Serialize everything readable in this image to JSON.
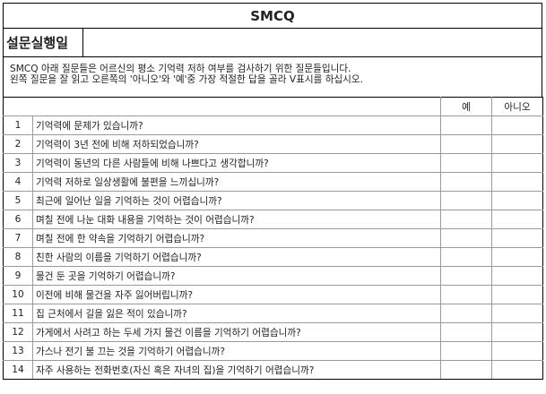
{
  "title": "SMCQ",
  "date_label": "설문실행일",
  "date_value": "",
  "instructions": [
    "SMCQ 아래 질문들은 어르신의 평소 기억력 저하 여부를 검사하기 위한 질문들입니다.",
    "왼쪽 질문을 잘 읽고 오른쪽의 '아니오'와 '예'중 가장 적절한 답을 골라 V표시를 하십시오."
  ],
  "columns": {
    "yes": "예",
    "no": "아니오"
  },
  "questions": [
    {
      "num": "1",
      "text": "기억력에 문제가 있습니까?"
    },
    {
      "num": "2",
      "text": "기억력이 3년 전에 비해 저하되었습니까?"
    },
    {
      "num": "3",
      "text": "기억력이 동년의 다른 사람들에 비해 나쁘다고 생각합니까?"
    },
    {
      "num": "4",
      "text": "기억력 저하로 일상생활에 불편을 느끼십니까?"
    },
    {
      "num": "5",
      "text": "최근에 일어난 일을 기억하는 것이 어렵습니까?"
    },
    {
      "num": "6",
      "text": "며칠 전에 나눈 대화 내용을 기억하는 것이 어렵습니까?"
    },
    {
      "num": "7",
      "text": "며칠 전에 한 약속을 기억하기 어렵습니까?"
    },
    {
      "num": "8",
      "text": "친한 사람의 이름을 기억하기 어렵습니까?"
    },
    {
      "num": "9",
      "text": "물건 둔 곳을 기억하기 어렵습니까?"
    },
    {
      "num": "10",
      "text": "이전에 비해 물건을 자주 잃어버립니까?"
    },
    {
      "num": "11",
      "text": "집 근처에서 길을 잃은 적이 있습니까?"
    },
    {
      "num": "12",
      "text": "가게에서 사려고 하는 두세 가지 물건 이름을 기억하기 어렵습니까?"
    },
    {
      "num": "13",
      "text": "가스나 전기 불 끄는 것을 기억하기 어렵습니까?"
    },
    {
      "num": "14",
      "text": "자주 사용하는 전화번호(자신 혹은 자녀의 집)을 기억하기 어렵습니까?"
    }
  ]
}
